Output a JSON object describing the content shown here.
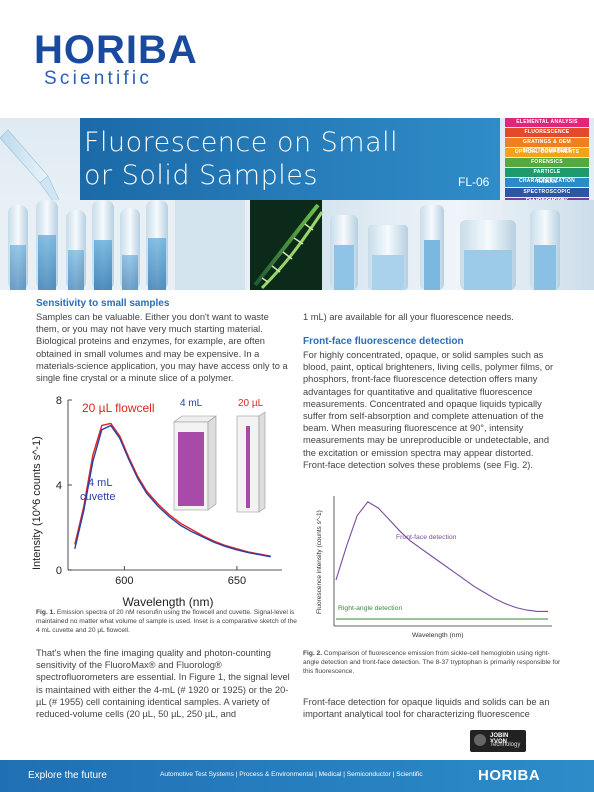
{
  "brand": {
    "name": "HORIBA",
    "division": "Scientific"
  },
  "doc": {
    "title_line1": "Fluorescence on Small",
    "title_line2": "or Solid Samples",
    "code": "FL-06"
  },
  "categories": [
    {
      "label": "ELEMENTAL ANALYSIS",
      "color": "#e0267a"
    },
    {
      "label": "FLUORESCENCE",
      "color": "#e34a2c"
    },
    {
      "label": "GRATINGS & OEM SPECTROMETERS",
      "color": "#f07f1f"
    },
    {
      "label": "OPTICAL COMPONENTS",
      "color": "#f4a21a"
    },
    {
      "label": "FORENSICS",
      "color": "#56a93c"
    },
    {
      "label": "PARTICLE CHARACTERIZATION",
      "color": "#1f9a6c"
    },
    {
      "label": "RAMAN",
      "color": "#2a8bc6"
    },
    {
      "label": "SPECTROSCOPIC ELLIPSOMETRY",
      "color": "#2c55a4"
    },
    {
      "label": "SPR IMAGING",
      "color": "#7c3f9c"
    }
  ],
  "left": {
    "heading": "Sensitivity to small samples",
    "para1": "Samples can be valuable. Either you don't want to waste them, or you may not have very much starting material. Biological proteins and enzymes, for example, are often obtained in small volumes and may be expensive. In a materials-science application, you may have access only to a single fine crystal or a minute slice of a polymer.",
    "fig1_label": "Fig. 1.",
    "fig1_caption": " Emission spectra of 20 nM resorufin using the flowcell and cuvette. Signal-level is maintained no matter what volume of sample is used. Inset is a comparative sketch of the 4 mL cuvette and 20 µL flowcell.",
    "para2": "That's when the fine imaging quality and photon-counting sensitivity of the FluoroMax® and Fluorolog® spectrofluorometers are essential. In Figure 1, the signal level is maintained with either the 4-mL (# 1920 or 1925) or the 20-µL (# 1955) cell containing identical samples. A variety of reduced-volume cells (20 µL, 50 µL, 250 µL, and"
  },
  "right": {
    "para0": "1 mL) are available for all your fluorescence needs.",
    "heading": "Front-face fluorescence detection",
    "para1": "For highly concentrated, opaque, or solid samples such as blood, paint, optical brighteners, living cells, polymer films, or phosphors, front-face fluorescence detection offers many advantages for quantitative and qualitative fluorescence measurements. Concentrated and opaque liquids typically suffer from self-absorption and complete attenuation of the beam. When measuring fluorescence at 90°, intensity measurements may be unreproducible or undetectable, and the excitation or emission spectra may appear distorted. Front-face detection solves these problems (see Fig. 2).",
    "fig2_label": "Fig. 2.",
    "fig2_caption": " Comparison of fluorescence emission from sickle-cell hemoglobin using right-angle detection and front-face detection. The 8-37 tryptophan is primarily responsible for this fluorescence.",
    "para2": "Front-face detection for opaque liquids and solids can be an important analytical tool for characterizing fluorescence"
  },
  "chart_data": [
    {
      "type": "line",
      "title": "",
      "xlabel": "Wavelength (nm)",
      "ylabel": "Intensity (10^6 counts s^-1)",
      "xlim": [
        575,
        670
      ],
      "ylim": [
        0,
        8
      ],
      "x_ticks": [
        "600",
        "650"
      ],
      "y_ticks": [
        "0",
        "4",
        "8"
      ],
      "series": [
        {
          "name": "20 µL flowcell",
          "color": "#e0261f",
          "x": [
            578,
            582,
            586,
            590,
            594,
            598,
            602,
            606,
            610,
            615,
            620,
            625,
            630,
            635,
            640,
            645,
            650,
            655,
            660,
            665
          ],
          "y": [
            1.2,
            3.0,
            5.4,
            6.8,
            6.9,
            6.3,
            5.3,
            4.4,
            3.7,
            3.1,
            2.6,
            2.2,
            1.9,
            1.6,
            1.35,
            1.15,
            1.0,
            0.85,
            0.75,
            0.65
          ]
        },
        {
          "name": "4 mL cuvette",
          "color": "#2a3fa8",
          "x": [
            578,
            582,
            586,
            590,
            594,
            598,
            602,
            606,
            610,
            615,
            620,
            625,
            630,
            635,
            640,
            645,
            650,
            655,
            660,
            665
          ],
          "y": [
            1.0,
            2.8,
            5.1,
            6.6,
            6.8,
            6.2,
            5.2,
            4.3,
            3.6,
            3.0,
            2.5,
            2.1,
            1.8,
            1.55,
            1.3,
            1.1,
            0.95,
            0.82,
            0.72,
            0.62
          ]
        }
      ],
      "annotations": [
        "20 µL flowcell",
        "4 mL",
        "cuvette"
      ],
      "inset_labels": [
        "4 mL",
        "20 µL"
      ]
    },
    {
      "type": "line",
      "title": "",
      "xlabel": "Wavelength (nm)",
      "ylabel": "Fluorescence intensity (counts s^-1)",
      "series": [
        {
          "name": "Front-face detection",
          "color": "#7a4aa0",
          "x": [
            0,
            5,
            10,
            15,
            20,
            25,
            30,
            35,
            40,
            45,
            50,
            55,
            60,
            65,
            70,
            75,
            80,
            85,
            90,
            95,
            100
          ],
          "y": [
            0.35,
            0.62,
            0.86,
            0.97,
            0.92,
            0.83,
            0.74,
            0.66,
            0.6,
            0.54,
            0.48,
            0.42,
            0.36,
            0.3,
            0.25,
            0.2,
            0.16,
            0.13,
            0.11,
            0.1,
            0.1
          ]
        },
        {
          "name": "Right-angle detection",
          "color": "#3a8a3a",
          "x": [
            0,
            50,
            100
          ],
          "y": [
            0.04,
            0.04,
            0.04
          ]
        }
      ]
    }
  ],
  "badge": {
    "line1": "JOBIN YVON",
    "line2": "Technology"
  },
  "footer": {
    "tagline": "Explore the future",
    "segments": "Automotive Test Systems  |  Process & Environmental  |  Medical  |  Semiconductor  |  Scientific",
    "brand": "HORIBA"
  }
}
